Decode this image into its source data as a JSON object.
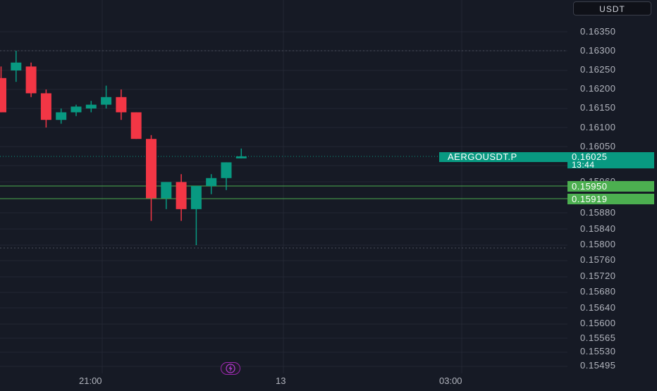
{
  "price_scale": {
    "currency": "USDT",
    "ticks": [
      "0.16350",
      "0.16300",
      "0.16250",
      "0.16200",
      "0.16150",
      "0.16100",
      "0.16050",
      "0.16000",
      "0.15960",
      "0.15880",
      "0.15840",
      "0.15800",
      "0.15760",
      "0.15720",
      "0.15680",
      "0.15640",
      "0.15600",
      "0.15565",
      "0.15530",
      "0.15495"
    ]
  },
  "time_axis": {
    "ticks": [
      "21:00",
      "13",
      "03:00"
    ]
  },
  "last_price": {
    "symbol": "AERGOUSDT.P",
    "price": "0.16025",
    "countdown": "13:44"
  },
  "levels": [
    {
      "price": "0.15950",
      "color": "#4caf50"
    },
    {
      "price": "0.15919",
      "color": "#4caf50"
    }
  ],
  "colors": {
    "up": "#089981",
    "down": "#f23645",
    "background": "#161a25",
    "grid": "#232733"
  },
  "icons": {
    "flash": "lightning-icon"
  },
  "chart_data": {
    "type": "candlestick",
    "ylim": [
      0.15495,
      0.1635
    ],
    "candles": [
      {
        "open": 0.1623,
        "high": 0.1626,
        "low": 0.1614,
        "close": 0.1614
      },
      {
        "open": 0.1625,
        "high": 0.163,
        "low": 0.1622,
        "close": 0.1627
      },
      {
        "open": 0.1626,
        "high": 0.1627,
        "low": 0.1618,
        "close": 0.1619
      },
      {
        "open": 0.1619,
        "high": 0.162,
        "low": 0.161,
        "close": 0.1612
      },
      {
        "open": 0.1612,
        "high": 0.1615,
        "low": 0.1611,
        "close": 0.1614
      },
      {
        "open": 0.1614,
        "high": 0.1616,
        "low": 0.1613,
        "close": 0.16155
      },
      {
        "open": 0.1615,
        "high": 0.1617,
        "low": 0.1614,
        "close": 0.1616
      },
      {
        "open": 0.1616,
        "high": 0.1621,
        "low": 0.1615,
        "close": 0.1618
      },
      {
        "open": 0.1618,
        "high": 0.162,
        "low": 0.1612,
        "close": 0.1614
      },
      {
        "open": 0.1614,
        "high": 0.1614,
        "low": 0.1607,
        "close": 0.1607
      },
      {
        "open": 0.1607,
        "high": 0.1608,
        "low": 0.1586,
        "close": 0.1592
      },
      {
        "open": 0.1592,
        "high": 0.1596,
        "low": 0.1589,
        "close": 0.1596
      },
      {
        "open": 0.1596,
        "high": 0.1598,
        "low": 0.1586,
        "close": 0.1589
      },
      {
        "open": 0.1589,
        "high": 0.1595,
        "low": 0.158,
        "close": 0.1595
      },
      {
        "open": 0.1595,
        "high": 0.1598,
        "low": 0.1593,
        "close": 0.1597
      },
      {
        "open": 0.1597,
        "high": 0.1601,
        "low": 0.1594,
        "close": 0.1601
      },
      {
        "open": 0.1602,
        "high": 0.16045,
        "low": 0.1602,
        "close": 0.16025
      }
    ]
  }
}
